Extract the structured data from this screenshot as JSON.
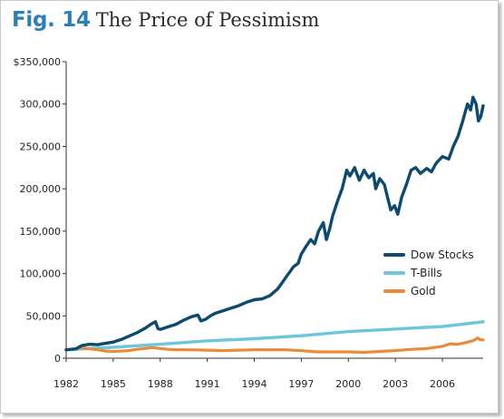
{
  "header": {
    "fig_label": "Fig. 14",
    "title": "The Price of Pessimism"
  },
  "colors": {
    "title_accent": "#2a7fb6",
    "dow": "#0e4a6e",
    "tbills": "#6cc7dc",
    "gold": "#ea8a3c"
  },
  "chart_data": {
    "type": "line",
    "title": "The Price of Pessimism",
    "xlabel": "",
    "ylabel": "",
    "xlim": [
      1982,
      2008.6
    ],
    "ylim": [
      0,
      350000
    ],
    "xticks": [
      1982,
      1985,
      1988,
      1991,
      1994,
      1997,
      2000,
      2003,
      2006
    ],
    "yticks": [
      {
        "value": 0,
        "label": "0"
      },
      {
        "value": 50000,
        "label": "50,000"
      },
      {
        "value": 100000,
        "label": "100,000"
      },
      {
        "value": 150000,
        "label": "150,000"
      },
      {
        "value": 200000,
        "label": "200,000"
      },
      {
        "value": 250000,
        "label": "250,000"
      },
      {
        "value": 300000,
        "label": "300,000"
      },
      {
        "value": 350000,
        "label": "$350,000"
      }
    ],
    "grid": false,
    "legend_position": "right",
    "series": [
      {
        "name": "Dow Stocks",
        "color": "#0e4a6e",
        "points": [
          [
            1982,
            10000
          ],
          [
            1982.6,
            11000
          ],
          [
            1983.0,
            15000
          ],
          [
            1983.5,
            16500
          ],
          [
            1984.0,
            16000
          ],
          [
            1984.5,
            17500
          ],
          [
            1985.0,
            19000
          ],
          [
            1985.5,
            22000
          ],
          [
            1986.0,
            26000
          ],
          [
            1986.5,
            30000
          ],
          [
            1987.0,
            35000
          ],
          [
            1987.4,
            40000
          ],
          [
            1987.7,
            43000
          ],
          [
            1987.85,
            35000
          ],
          [
            1988.0,
            34000
          ],
          [
            1988.5,
            37000
          ],
          [
            1989.0,
            40000
          ],
          [
            1989.5,
            45000
          ],
          [
            1990.0,
            49000
          ],
          [
            1990.4,
            51000
          ],
          [
            1990.6,
            44000
          ],
          [
            1990.9,
            46000
          ],
          [
            1991.2,
            50000
          ],
          [
            1991.5,
            53000
          ],
          [
            1992.0,
            56000
          ],
          [
            1992.5,
            59000
          ],
          [
            1993.0,
            62000
          ],
          [
            1993.5,
            66000
          ],
          [
            1994.0,
            69000
          ],
          [
            1994.5,
            70000
          ],
          [
            1995.0,
            74000
          ],
          [
            1995.5,
            82000
          ],
          [
            1996.0,
            95000
          ],
          [
            1996.5,
            108000
          ],
          [
            1996.8,
            112000
          ],
          [
            1997.0,
            123000
          ],
          [
            1997.3,
            132000
          ],
          [
            1997.6,
            140000
          ],
          [
            1997.85,
            135000
          ],
          [
            1998.1,
            150000
          ],
          [
            1998.4,
            160000
          ],
          [
            1998.6,
            140000
          ],
          [
            1998.8,
            152000
          ],
          [
            1999.0,
            168000
          ],
          [
            1999.3,
            185000
          ],
          [
            1999.6,
            200000
          ],
          [
            1999.9,
            222000
          ],
          [
            2000.1,
            215000
          ],
          [
            2000.4,
            225000
          ],
          [
            2000.7,
            210000
          ],
          [
            2001.0,
            222000
          ],
          [
            2001.3,
            213000
          ],
          [
            2001.6,
            218000
          ],
          [
            2001.75,
            200000
          ],
          [
            2002.0,
            212000
          ],
          [
            2002.3,
            205000
          ],
          [
            2002.5,
            190000
          ],
          [
            2002.7,
            175000
          ],
          [
            2002.95,
            180000
          ],
          [
            2003.15,
            170000
          ],
          [
            2003.4,
            190000
          ],
          [
            2003.7,
            205000
          ],
          [
            2004.0,
            222000
          ],
          [
            2004.3,
            225000
          ],
          [
            2004.6,
            218000
          ],
          [
            2005.0,
            224000
          ],
          [
            2005.3,
            220000
          ],
          [
            2005.6,
            230000
          ],
          [
            2006.0,
            238000
          ],
          [
            2006.4,
            235000
          ],
          [
            2006.7,
            250000
          ],
          [
            2007.0,
            262000
          ],
          [
            2007.3,
            280000
          ],
          [
            2007.6,
            300000
          ],
          [
            2007.8,
            293000
          ],
          [
            2007.95,
            308000
          ],
          [
            2008.15,
            300000
          ],
          [
            2008.3,
            280000
          ],
          [
            2008.45,
            285000
          ],
          [
            2008.6,
            298000
          ]
        ]
      },
      {
        "name": "T-Bills",
        "color": "#6cc7dc",
        "points": [
          [
            1982,
            10000
          ],
          [
            1985,
            13000
          ],
          [
            1988,
            16500
          ],
          [
            1991,
            20500
          ],
          [
            1994,
            23000
          ],
          [
            1997,
            26500
          ],
          [
            2000,
            31500
          ],
          [
            2003,
            34500
          ],
          [
            2006,
            37500
          ],
          [
            2008.6,
            43000
          ]
        ]
      },
      {
        "name": "Gold",
        "color": "#ea8a3c",
        "points": [
          [
            1982,
            10000
          ],
          [
            1982.6,
            11000
          ],
          [
            1983.0,
            12500
          ],
          [
            1983.5,
            11000
          ],
          [
            1984.0,
            10000
          ],
          [
            1984.5,
            8500
          ],
          [
            1985.0,
            8000
          ],
          [
            1985.5,
            8500
          ],
          [
            1986.0,
            9000
          ],
          [
            1986.5,
            10500
          ],
          [
            1987.0,
            11500
          ],
          [
            1987.5,
            12500
          ],
          [
            1988.0,
            11500
          ],
          [
            1988.5,
            10500
          ],
          [
            1989.0,
            10000
          ],
          [
            1990.0,
            10000
          ],
          [
            1991.0,
            9500
          ],
          [
            1992.0,
            9000
          ],
          [
            1993.0,
            9500
          ],
          [
            1994.0,
            10000
          ],
          [
            1995.0,
            10000
          ],
          [
            1996.0,
            10000
          ],
          [
            1997.0,
            9000
          ],
          [
            1998.0,
            7500
          ],
          [
            1999.0,
            7500
          ],
          [
            2000.0,
            7500
          ],
          [
            2001.0,
            7000
          ],
          [
            2002.0,
            8000
          ],
          [
            2003.0,
            9000
          ],
          [
            2004.0,
            10500
          ],
          [
            2005.0,
            11500
          ],
          [
            2006.0,
            14000
          ],
          [
            2006.5,
            17000
          ],
          [
            2007.0,
            16500
          ],
          [
            2007.5,
            18500
          ],
          [
            2008.0,
            21000
          ],
          [
            2008.25,
            24000
          ],
          [
            2008.4,
            22000
          ],
          [
            2008.6,
            21500
          ]
        ]
      }
    ]
  }
}
